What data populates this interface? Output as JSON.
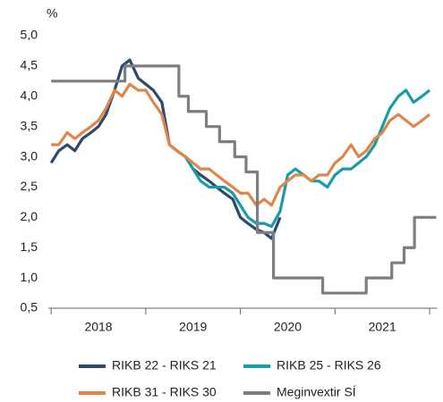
{
  "chart_data": {
    "type": "line",
    "y_unit": "%",
    "x": [
      2018,
      2018.08,
      2018.17,
      2018.25,
      2018.33,
      2018.42,
      2018.5,
      2018.58,
      2018.67,
      2018.75,
      2018.83,
      2018.92,
      2019,
      2019.08,
      2019.17,
      2019.25,
      2019.33,
      2019.42,
      2019.5,
      2019.58,
      2019.67,
      2019.75,
      2019.83,
      2019.92,
      2020,
      2020.08,
      2020.17,
      2020.25,
      2020.33,
      2020.42,
      2020.5,
      2020.58,
      2020.67,
      2020.75,
      2020.83,
      2020.92,
      2021,
      2021.08,
      2021.17,
      2021.25,
      2021.33,
      2021.42,
      2021.5,
      2021.58,
      2021.67,
      2021.75,
      2021.83,
      2021.92,
      2022
    ],
    "series": [
      {
        "name": "RIKB 22 - RIKS 21",
        "color": "#2e4a6b",
        "values": [
          2.9,
          3.1,
          3.2,
          3.1,
          3.3,
          3.4,
          3.5,
          3.7,
          4.1,
          4.5,
          4.6,
          4.3,
          4.2,
          4.1,
          3.9,
          3.2,
          3.1,
          3.0,
          2.8,
          2.7,
          2.6,
          2.5,
          2.4,
          2.3,
          2.0,
          1.9,
          1.8,
          1.75,
          1.65,
          2.0,
          null,
          null,
          null,
          null,
          null,
          null,
          null,
          null,
          null,
          null,
          null,
          null,
          null,
          null,
          null,
          null,
          null,
          null,
          null
        ]
      },
      {
        "name": "RIKB 25 - RIKS 26",
        "color": "#1a9ba8",
        "values": [
          null,
          null,
          null,
          null,
          null,
          null,
          null,
          null,
          null,
          null,
          null,
          null,
          null,
          null,
          null,
          null,
          3.1,
          3.0,
          2.8,
          2.6,
          2.5,
          2.5,
          2.5,
          2.4,
          2.2,
          2.0,
          1.9,
          1.9,
          1.85,
          2.1,
          2.7,
          2.8,
          2.7,
          2.6,
          2.6,
          2.5,
          2.7,
          2.8,
          2.8,
          2.9,
          3.0,
          3.2,
          3.5,
          3.8,
          4.0,
          4.1,
          3.9,
          4.0,
          4.1
        ]
      },
      {
        "name": "RIKB 31 - RIKS 30",
        "color": "#e0864a",
        "values": [
          3.2,
          3.2,
          3.4,
          3.3,
          3.4,
          3.5,
          3.6,
          3.8,
          4.1,
          4.0,
          4.2,
          4.1,
          4.1,
          3.9,
          3.7,
          3.2,
          3.1,
          3.0,
          2.9,
          2.8,
          2.8,
          2.7,
          2.6,
          2.5,
          2.4,
          2.4,
          2.2,
          2.3,
          2.2,
          2.5,
          2.6,
          2.7,
          2.7,
          2.6,
          2.7,
          2.7,
          2.9,
          3.0,
          3.2,
          3.0,
          3.1,
          3.3,
          3.4,
          3.6,
          3.7,
          3.6,
          3.5,
          3.6,
          3.7
        ]
      },
      {
        "name": "Meginvextir SÍ",
        "color": "#7b7f83",
        "step": true,
        "x": [
          2018,
          2018.78,
          2019.35,
          2019.45,
          2019.64,
          2019.78,
          2019.94,
          2020.06,
          2020.18,
          2020.35,
          2020.87,
          2021.33,
          2021.6,
          2021.73,
          2021.84,
          2022.07
        ],
        "values": [
          4.25,
          4.5,
          4.0,
          3.75,
          3.5,
          3.25,
          3.0,
          2.75,
          1.75,
          1.0,
          0.75,
          1.0,
          1.25,
          1.5,
          2.0,
          2.0
        ]
      }
    ],
    "xlim": [
      2017.97,
      2022.08
    ],
    "xticks": [
      2018,
      2019,
      2020,
      2021,
      2022
    ],
    "year_labels": [
      "2018",
      "2019",
      "2020",
      "2021"
    ],
    "ylim": [
      0.5,
      5.0
    ],
    "yticks": [
      {
        "value": 0.5,
        "label": "0,5"
      },
      {
        "value": 1.0,
        "label": "1,0"
      },
      {
        "value": 1.5,
        "label": "1,5"
      },
      {
        "value": 2.0,
        "label": "2,0"
      },
      {
        "value": 2.5,
        "label": "2,5"
      },
      {
        "value": 3.0,
        "label": "3,0"
      },
      {
        "value": 3.5,
        "label": "3,5"
      },
      {
        "value": 4.0,
        "label": "4,0"
      },
      {
        "value": 4.5,
        "label": "4,5"
      },
      {
        "value": 5.0,
        "label": "5,0"
      }
    ],
    "grid": false,
    "legend": "bottom"
  }
}
